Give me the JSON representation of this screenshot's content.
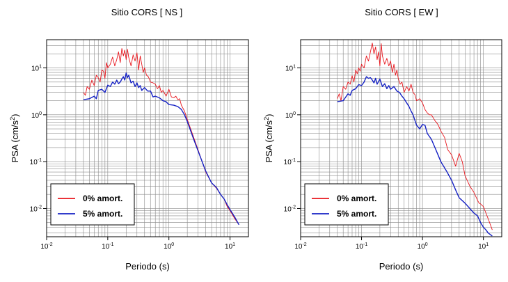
{
  "chart_data": [
    {
      "type": "line",
      "title": "Sitio CORS [ NS ]",
      "xlabel": "Periodo (s)",
      "ylabel_base": "PSA (cm/s",
      "ylabel_sup": "2",
      "ylabel_close": ")",
      "xscale": "log",
      "yscale": "log",
      "xlim": [
        0.01,
        20
      ],
      "ylim": [
        0.0025,
        40
      ],
      "grid": true,
      "legend_position": "bottom-left",
      "x_ticks": [
        {
          "base": "10",
          "exp": "-2",
          "value": 0.01
        },
        {
          "base": "10",
          "exp": "-1",
          "value": 0.1
        },
        {
          "base": "10",
          "exp": "0",
          "value": 1
        },
        {
          "base": "10",
          "exp": "1",
          "value": 10
        }
      ],
      "y_ticks": [
        {
          "base": "10",
          "exp": "-2",
          "value": 0.01
        },
        {
          "base": "10",
          "exp": "-1",
          "value": 0.1
        },
        {
          "base": "10",
          "exp": "0",
          "value": 1
        },
        {
          "base": "10",
          "exp": "1",
          "value": 10
        }
      ],
      "series": [
        {
          "name": "0% amort.",
          "color": "#e8161d",
          "x": [
            0.04,
            0.043,
            0.046,
            0.05,
            0.055,
            0.06,
            0.065,
            0.07,
            0.075,
            0.08,
            0.085,
            0.09,
            0.095,
            0.1,
            0.11,
            0.12,
            0.13,
            0.14,
            0.15,
            0.16,
            0.17,
            0.18,
            0.19,
            0.2,
            0.21,
            0.22,
            0.24,
            0.26,
            0.28,
            0.3,
            0.32,
            0.34,
            0.36,
            0.38,
            0.4,
            0.43,
            0.46,
            0.5,
            0.55,
            0.6,
            0.65,
            0.7,
            0.75,
            0.8,
            0.9,
            1.0,
            1.1,
            1.2,
            1.3,
            1.4,
            1.5,
            1.6,
            1.8,
            2.0,
            2.5,
            3.0,
            3.5,
            4.0,
            5.0,
            6.0,
            7.0,
            8.0,
            9.0,
            10,
            12,
            14
          ],
          "y": [
            3.0,
            2.6,
            4.0,
            3.5,
            5.5,
            4.2,
            7.0,
            6.2,
            5.0,
            9.0,
            8.5,
            6.0,
            13,
            10,
            12,
            17,
            11,
            15,
            22,
            13,
            26,
            18,
            24,
            15,
            25,
            17,
            11,
            19,
            14,
            21,
            9,
            18,
            12,
            8,
            10,
            7,
            6.5,
            5,
            4.8,
            4.5,
            3.6,
            4.2,
            3.0,
            3.3,
            2.5,
            3.5,
            2.4,
            2.3,
            2.5,
            2.1,
            2.2,
            1.6,
            1.2,
            0.8,
            0.35,
            0.18,
            0.1,
            0.06,
            0.035,
            0.027,
            0.02,
            0.016,
            0.011,
            0.009,
            0.006,
            0.0045
          ]
        },
        {
          "name": "5% amort.",
          "color": "#1521c4",
          "x": [
            0.04,
            0.05,
            0.06,
            0.065,
            0.07,
            0.08,
            0.09,
            0.1,
            0.11,
            0.12,
            0.13,
            0.14,
            0.15,
            0.16,
            0.17,
            0.18,
            0.19,
            0.2,
            0.21,
            0.22,
            0.24,
            0.26,
            0.28,
            0.3,
            0.32,
            0.34,
            0.36,
            0.4,
            0.45,
            0.5,
            0.55,
            0.6,
            0.7,
            0.8,
            0.9,
            1.0,
            1.2,
            1.4,
            1.6,
            1.8,
            2.0,
            2.5,
            3.0,
            3.5,
            4.0,
            5.0,
            6.0,
            7.0,
            8.0,
            9.0,
            10,
            12,
            14
          ],
          "y": [
            2.1,
            2.2,
            2.5,
            2.2,
            3.3,
            3.5,
            3.0,
            4.3,
            4.0,
            5.0,
            4.5,
            5.5,
            4.6,
            5.0,
            5.8,
            6.5,
            5.5,
            7.8,
            6.2,
            7.0,
            4.8,
            5.2,
            4.0,
            4.8,
            3.8,
            4.2,
            3.3,
            3.8,
            3.2,
            3.2,
            2.4,
            2.5,
            2.3,
            2.0,
            1.9,
            1.65,
            1.6,
            1.5,
            1.3,
            1.0,
            0.72,
            0.32,
            0.17,
            0.1,
            0.063,
            0.035,
            0.028,
            0.02,
            0.016,
            0.012,
            0.0095,
            0.0065,
            0.0045
          ]
        }
      ]
    },
    {
      "type": "line",
      "title": "Sitio CORS [ EW ]",
      "xlabel": "Periodo (s)",
      "ylabel_base": "PSA (cm/s",
      "ylabel_sup": "2",
      "ylabel_close": ")",
      "xscale": "log",
      "yscale": "log",
      "xlim": [
        0.01,
        20
      ],
      "ylim": [
        0.0025,
        40
      ],
      "grid": true,
      "legend_position": "bottom-left",
      "x_ticks": [
        {
          "base": "10",
          "exp": "-2",
          "value": 0.01
        },
        {
          "base": "10",
          "exp": "-1",
          "value": 0.1
        },
        {
          "base": "10",
          "exp": "0",
          "value": 1
        },
        {
          "base": "10",
          "exp": "1",
          "value": 10
        }
      ],
      "y_ticks": [
        {
          "base": "10",
          "exp": "-2",
          "value": 0.01
        },
        {
          "base": "10",
          "exp": "-1",
          "value": 0.1
        },
        {
          "base": "10",
          "exp": "0",
          "value": 1
        },
        {
          "base": "10",
          "exp": "1",
          "value": 10
        }
      ],
      "series": [
        {
          "name": "0% amort.",
          "color": "#e8161d",
          "x": [
            0.04,
            0.043,
            0.046,
            0.05,
            0.055,
            0.06,
            0.065,
            0.07,
            0.075,
            0.08,
            0.085,
            0.09,
            0.095,
            0.1,
            0.11,
            0.12,
            0.13,
            0.14,
            0.15,
            0.16,
            0.17,
            0.18,
            0.19,
            0.2,
            0.21,
            0.22,
            0.24,
            0.26,
            0.28,
            0.3,
            0.32,
            0.34,
            0.36,
            0.38,
            0.4,
            0.43,
            0.46,
            0.5,
            0.55,
            0.6,
            0.65,
            0.7,
            0.75,
            0.8,
            0.9,
            1.0,
            1.1,
            1.2,
            1.3,
            1.4,
            1.6,
            1.8,
            2.0,
            2.3,
            2.6,
            3.0,
            3.5,
            4.0,
            4.5,
            5.0,
            6.0,
            7.0,
            8.0,
            8.5,
            9.0,
            10,
            11,
            12,
            14
          ],
          "y": [
            2.2,
            2.8,
            2.0,
            4.0,
            3.5,
            5.0,
            4.5,
            6.8,
            5.0,
            9.0,
            7.5,
            10,
            8.5,
            12,
            10,
            18,
            14,
            22,
            34,
            20,
            28,
            15,
            22,
            11,
            33,
            18,
            12,
            16,
            11,
            14,
            8,
            12,
            7,
            9,
            6,
            4.5,
            5,
            3.0,
            4.0,
            3.2,
            4.5,
            3.0,
            2.7,
            2.0,
            2.2,
            1.8,
            1.3,
            1.1,
            1.0,
            1.0,
            0.75,
            0.62,
            0.45,
            0.33,
            0.18,
            0.14,
            0.08,
            0.15,
            0.1,
            0.05,
            0.03,
            0.022,
            0.015,
            0.013,
            0.0125,
            0.011,
            0.008,
            0.006,
            0.0035
          ]
        },
        {
          "name": "5% amort.",
          "color": "#1521c4",
          "x": [
            0.04,
            0.05,
            0.06,
            0.065,
            0.07,
            0.08,
            0.09,
            0.1,
            0.11,
            0.12,
            0.13,
            0.14,
            0.15,
            0.16,
            0.17,
            0.18,
            0.2,
            0.22,
            0.24,
            0.26,
            0.28,
            0.3,
            0.34,
            0.38,
            0.42,
            0.46,
            0.5,
            0.55,
            0.6,
            0.65,
            0.7,
            0.8,
            0.9,
            1.0,
            1.1,
            1.2,
            1.4,
            1.6,
            1.8,
            2.0,
            2.5,
            3.0,
            3.5,
            4.0,
            5.0,
            6.0,
            7.0,
            8.0,
            9.0,
            10,
            11,
            12,
            14
          ],
          "y": [
            1.9,
            2.0,
            2.8,
            2.6,
            3.3,
            3.6,
            4.4,
            4.2,
            5.0,
            6.5,
            6.0,
            6.2,
            5.5,
            4.8,
            6.0,
            4.5,
            5.8,
            4.0,
            4.6,
            3.6,
            4.2,
            3.5,
            4.0,
            3.2,
            3.0,
            2.5,
            2.2,
            1.8,
            1.5,
            1.2,
            1.0,
            0.6,
            0.5,
            0.62,
            0.6,
            0.4,
            0.3,
            0.2,
            0.14,
            0.1,
            0.062,
            0.04,
            0.025,
            0.017,
            0.013,
            0.01,
            0.008,
            0.007,
            0.005,
            0.004,
            0.0035,
            0.003,
            0.0026
          ]
        }
      ]
    }
  ]
}
